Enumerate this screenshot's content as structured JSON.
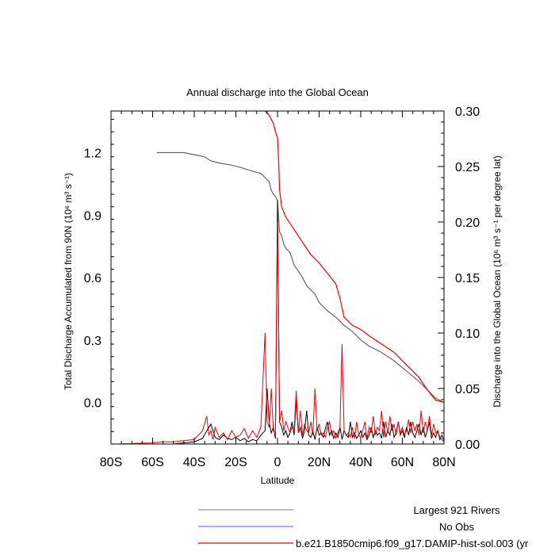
{
  "chart_data": {
    "type": "line",
    "title": "Annual discharge into the Global Ocean",
    "xlabel": "Latitude",
    "ylabel_left": "Total Discharge Accumulated from 90N (10⁶ m³ s⁻¹)",
    "ylabel_right": "Discharge into the Global Ocean (10⁶ m³ s⁻¹ per degree lat)",
    "xlim": [
      -80,
      80
    ],
    "ylim_left": [
      -0.2,
      1.4
    ],
    "ylim_right": [
      0,
      0.3
    ],
    "x_ticks": [
      -80,
      -60,
      -40,
      -20,
      0,
      20,
      40,
      60,
      80
    ],
    "x_tick_labels": [
      "80S",
      "60S",
      "40S",
      "20S",
      "0",
      "20N",
      "40N",
      "60N",
      "80N"
    ],
    "y_left_ticks": [
      0.0,
      0.3,
      0.6,
      0.9,
      1.2
    ],
    "y_left_tick_labels": [
      "0.0",
      "0.3",
      "0.6",
      "0.9",
      "1.2"
    ],
    "y_right_ticks": [
      0.0,
      0.05,
      0.1,
      0.15,
      0.2,
      0.25,
      0.3
    ],
    "y_right_tick_labels": [
      "0.00",
      "0.05",
      "0.10",
      "0.15",
      "0.20",
      "0.25",
      "0.30"
    ],
    "legend_position": "bottom",
    "series": [
      {
        "name": "Largest 921 Rivers",
        "color": "#666666",
        "axis": "left",
        "kind": "cumulative",
        "x": [
          -58,
          -45,
          -40,
          -35,
          -32,
          -28,
          -22,
          -18,
          -12,
          -8,
          -6,
          -4,
          -3,
          -2,
          -1,
          0,
          1,
          2,
          3,
          4,
          6,
          8,
          10,
          12,
          14,
          18,
          20,
          24,
          28,
          30,
          32,
          36,
          40,
          44,
          50,
          56,
          62,
          68,
          72,
          76,
          80
        ],
        "y": [
          1.2,
          1.2,
          1.19,
          1.18,
          1.16,
          1.15,
          1.14,
          1.13,
          1.11,
          1.1,
          1.08,
          1.06,
          1.02,
          1.0,
          0.99,
          0.97,
          0.82,
          0.8,
          0.76,
          0.74,
          0.72,
          0.66,
          0.63,
          0.6,
          0.56,
          0.52,
          0.48,
          0.44,
          0.41,
          0.39,
          0.37,
          0.34,
          0.3,
          0.27,
          0.24,
          0.2,
          0.15,
          0.1,
          0.06,
          0.02,
          0.0
        ]
      },
      {
        "name": "No Obs",
        "color": "#7b7bff",
        "axis": "left",
        "kind": "cumulative",
        "x": [],
        "y": []
      },
      {
        "name": "b.e21.B1850cmip6.f09_g17.DAMIP-hist-sol.003 (yr",
        "color": "#ee0000",
        "axis": "left",
        "kind": "cumulative",
        "x": [
          -6,
          -4,
          -2,
          -1,
          0,
          0.5,
          1,
          2,
          4,
          8,
          12,
          16,
          20,
          24,
          28,
          30,
          32,
          36,
          40,
          44,
          50,
          56,
          62,
          68,
          72,
          76,
          80
        ],
        "y": [
          1.4,
          1.38,
          1.34,
          1.3,
          1.27,
          1.18,
          1.02,
          0.94,
          0.89,
          0.83,
          0.77,
          0.71,
          0.67,
          0.62,
          0.57,
          0.5,
          0.41,
          0.37,
          0.35,
          0.32,
          0.28,
          0.24,
          0.18,
          0.12,
          0.06,
          0.01,
          0.0
        ]
      },
      {
        "name": "Largest 921 Rivers per degree",
        "color": "#000000",
        "axis": "right",
        "kind": "perdegree",
        "x": [
          -80,
          -60,
          -50,
          -45,
          -40,
          -36,
          -34,
          -32,
          -30,
          -28,
          -26,
          -24,
          -22,
          -20,
          -18,
          -16,
          -14,
          -12,
          -10,
          -8,
          -6,
          -5,
          -4,
          -3,
          -2,
          -1,
          0,
          1,
          2,
          3,
          4,
          5,
          6,
          7,
          8,
          9,
          10,
          11,
          12,
          13,
          14,
          15,
          16,
          17,
          18,
          19,
          20,
          21,
          22,
          23,
          24,
          25,
          26,
          27,
          28,
          29,
          30,
          31,
          32,
          33,
          34,
          35,
          36,
          37,
          38,
          39,
          40,
          41,
          42,
          43,
          44,
          45,
          46,
          47,
          48,
          49,
          50,
          51,
          52,
          53,
          54,
          55,
          56,
          57,
          58,
          59,
          60,
          61,
          62,
          63,
          64,
          65,
          66,
          67,
          68,
          69,
          70,
          71,
          72,
          73,
          74,
          75,
          76,
          77,
          78,
          79,
          80
        ],
        "y": [
          0,
          0,
          0,
          0.001,
          0.002,
          0.005,
          0.012,
          0.018,
          0.006,
          0.004,
          0.008,
          0.005,
          0.004,
          0.006,
          0.003,
          0.005,
          0.002,
          0.004,
          0.003,
          0.008,
          0.012,
          0.05,
          0.02,
          0.01,
          0.015,
          0.005,
          0.22,
          0.02,
          0.015,
          0.008,
          0.012,
          0.006,
          0.01,
          0.02,
          0.008,
          0.04,
          0.01,
          0.015,
          0.005,
          0.012,
          0.03,
          0.008,
          0.006,
          0.012,
          0.004,
          0.015,
          0.008,
          0.01,
          0.006,
          0.014,
          0.02,
          0.008,
          0.012,
          0.005,
          0.01,
          0.006,
          0.015,
          0.004,
          0.012,
          0.008,
          0.006,
          0.02,
          0.006,
          0.01,
          0.005,
          0.008,
          0.012,
          0.006,
          0.01,
          0.004,
          0.008,
          0.015,
          0.006,
          0.012,
          0.008,
          0.01,
          0.005,
          0.02,
          0.006,
          0.012,
          0.008,
          0.018,
          0.006,
          0.01,
          0.02,
          0.008,
          0.012,
          0.006,
          0.015,
          0.008,
          0.02,
          0.01,
          0.006,
          0.012,
          0.018,
          0.008,
          0.015,
          0.006,
          0.012,
          0.02,
          0.005,
          0.01,
          0.006,
          0.012,
          0.004,
          0.008,
          0.003
        ]
      },
      {
        "name": "b.e21.B1850cmip6.f09_g17.DAMIP-hist-sol.003 per degree",
        "color": "#ee0000",
        "axis": "right",
        "kind": "perdegree",
        "x": [
          -80,
          -60,
          -55,
          -50,
          -45,
          -40,
          -38,
          -36,
          -34,
          -33,
          -32,
          -31,
          -30,
          -28,
          -26,
          -24,
          -22,
          -20,
          -18,
          -16,
          -14,
          -12,
          -10,
          -8,
          -6,
          -5,
          -4,
          -3,
          -2,
          -1,
          0,
          1,
          2,
          3,
          4,
          5,
          6,
          7,
          8,
          9,
          10,
          11,
          12,
          13,
          14,
          15,
          16,
          17,
          18,
          19,
          20,
          21,
          22,
          23,
          24,
          25,
          26,
          27,
          28,
          29,
          30,
          31,
          32,
          33,
          34,
          35,
          36,
          37,
          38,
          39,
          40,
          41,
          42,
          43,
          44,
          45,
          46,
          47,
          48,
          49,
          50,
          51,
          52,
          53,
          54,
          55,
          56,
          57,
          58,
          59,
          60,
          61,
          62,
          63,
          64,
          65,
          66,
          67,
          68,
          69,
          70,
          71,
          72,
          73,
          74,
          75,
          76,
          77,
          78,
          79,
          80
        ],
        "y": [
          0,
          0.001,
          0.002,
          0.002,
          0.003,
          0.004,
          0.008,
          0.012,
          0.025,
          0.008,
          0.012,
          0.004,
          0.015,
          0.006,
          0.01,
          0.004,
          0.012,
          0.006,
          0.008,
          0.014,
          0.005,
          0.012,
          0.006,
          0.015,
          0.1,
          0.02,
          0.015,
          0.05,
          0.012,
          0.008,
          0.2,
          0.02,
          0.03,
          0.012,
          0.02,
          0.015,
          0.01,
          0.015,
          0.012,
          0.048,
          0.01,
          0.03,
          0.008,
          0.018,
          0.012,
          0.01,
          0.02,
          0.008,
          0.05,
          0.012,
          0.018,
          0.008,
          0.01,
          0.006,
          0.015,
          0.02,
          0.008,
          0.012,
          0.005,
          0.01,
          0.015,
          0.09,
          0.012,
          0.008,
          0.01,
          0.006,
          0.015,
          0.005,
          0.02,
          0.008,
          0.006,
          0.012,
          0.02,
          0.005,
          0.015,
          0.01,
          0.025,
          0.008,
          0.015,
          0.012,
          0.03,
          0.006,
          0.02,
          0.01,
          0.025,
          0.012,
          0.018,
          0.008,
          0.02,
          0.01,
          0.015,
          0.008,
          0.012,
          0.022,
          0.01,
          0.02,
          0.012,
          0.018,
          0.008,
          0.03,
          0.01,
          0.02,
          0.012,
          0.025,
          0.008,
          0.018,
          0.01,
          0.012,
          0.006,
          0.004,
          0.002
        ]
      }
    ],
    "legend": [
      {
        "label": "Largest 921 Rivers",
        "color": "#999999"
      },
      {
        "label": "No Obs",
        "color": "#7b7bff"
      },
      {
        "label": "b.e21.B1850cmip6.f09_g17.DAMIP-hist-sol.003 (yr",
        "color": "#ee0000"
      }
    ]
  }
}
